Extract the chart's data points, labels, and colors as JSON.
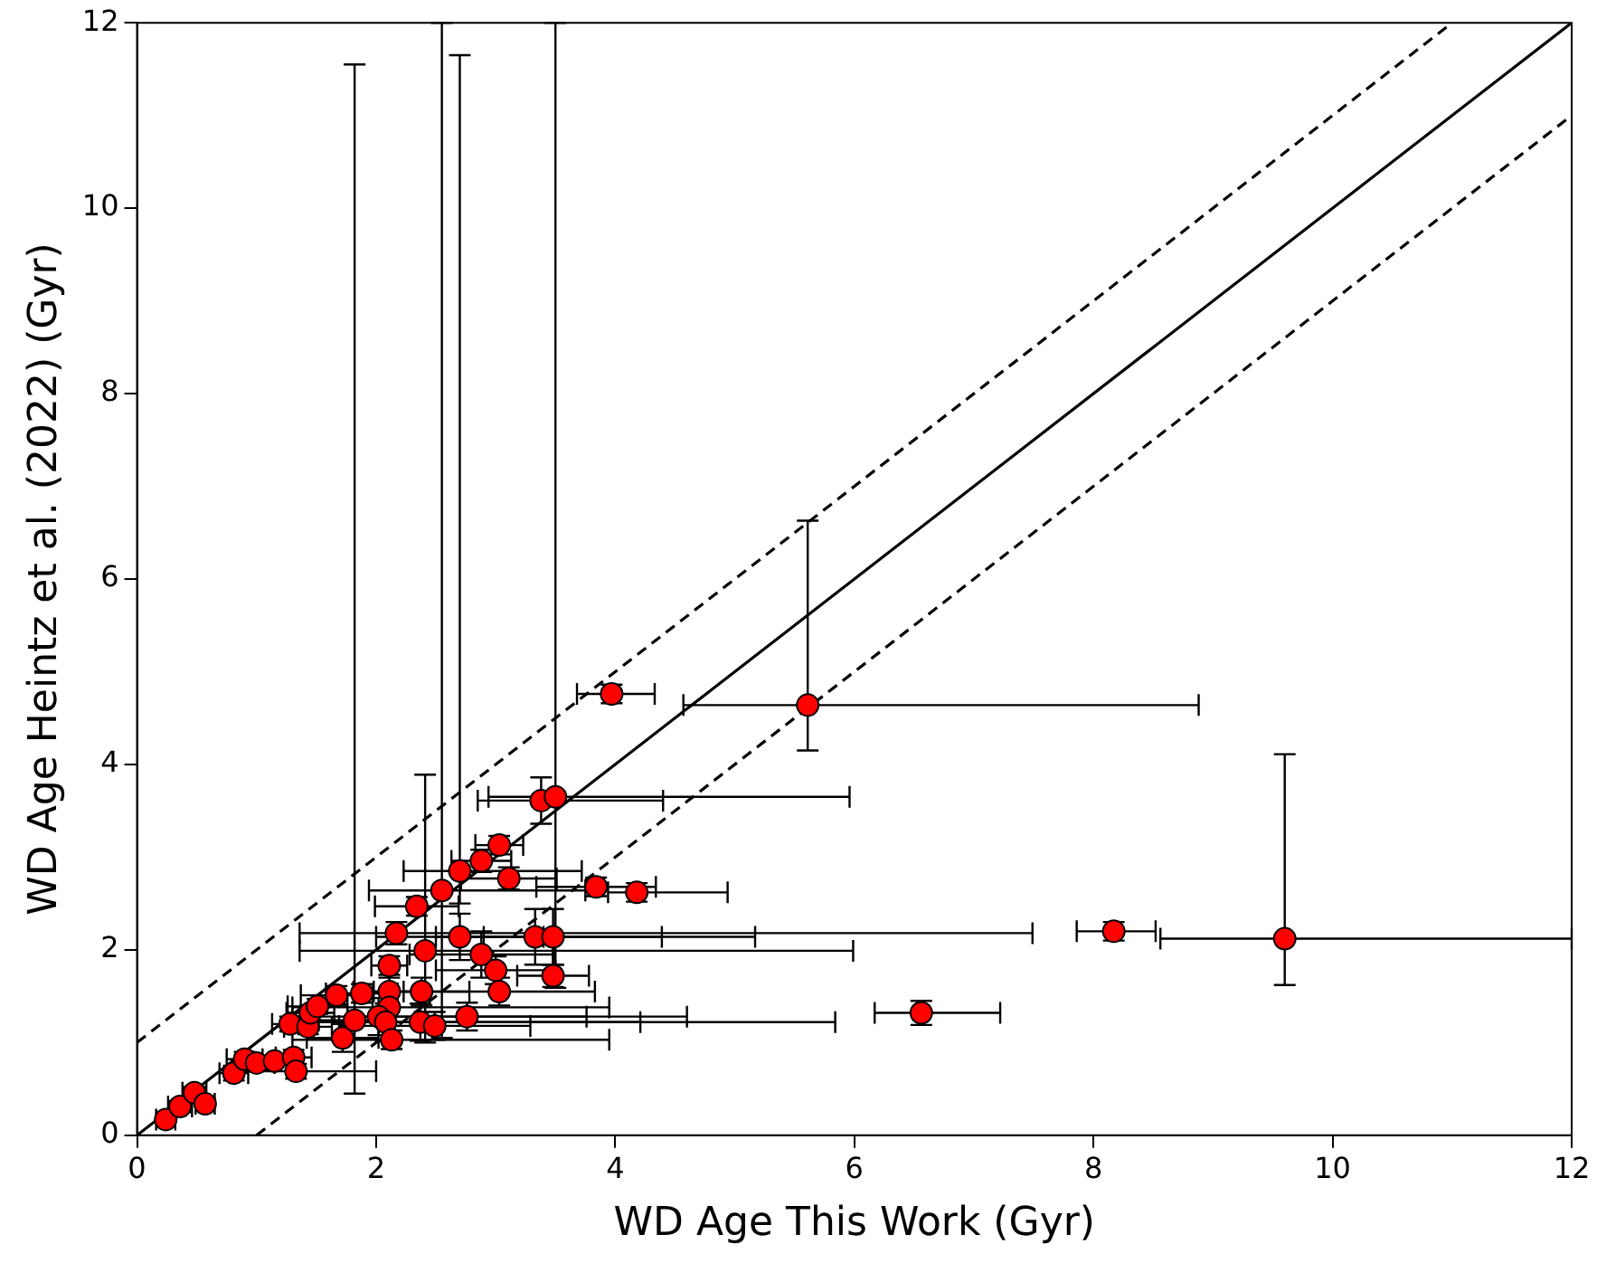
{
  "chart_data": {
    "type": "scatter",
    "xlabel": "WD Age This Work (Gyr)",
    "ylabel": "WD Age Heintz et al. (2022) (Gyr)",
    "xlim": [
      0,
      12
    ],
    "ylim": [
      0,
      12
    ],
    "xticks": [
      0,
      2,
      4,
      6,
      8,
      10,
      12
    ],
    "yticks": [
      0,
      2,
      4,
      6,
      8,
      10,
      12
    ],
    "grid": false,
    "legend": false,
    "marker": "circle",
    "series": [
      {
        "color": "#ff0000",
        "x": [
          0.24,
          0.36,
          0.48,
          0.57,
          0.81,
          0.9,
          1.0,
          1.15,
          1.31,
          1.33,
          1.28,
          1.43,
          1.45,
          1.51,
          1.67,
          1.88,
          1.72,
          1.82,
          2.11,
          2.11,
          2.11,
          2.02,
          2.08,
          2.13,
          2.38,
          2.37,
          2.49,
          2.41,
          2.17,
          2.34,
          2.55,
          2.7,
          2.88,
          3.03,
          3.11,
          2.7,
          2.76,
          2.88,
          3.0,
          3.03,
          3.33,
          3.48,
          3.48,
          3.38,
          3.5,
          3.84,
          4.18,
          3.97,
          5.61,
          8.17,
          9.6,
          6.56
        ],
        "values": [
          0.17,
          0.31,
          0.46,
          0.34,
          0.67,
          0.82,
          0.78,
          0.8,
          0.84,
          0.69,
          1.2,
          1.17,
          1.32,
          1.39,
          1.51,
          1.53,
          1.05,
          1.24,
          1.83,
          1.55,
          1.38,
          1.28,
          1.22,
          1.03,
          1.55,
          1.22,
          1.18,
          1.99,
          2.18,
          2.47,
          2.64,
          2.85,
          2.96,
          3.13,
          2.77,
          2.14,
          1.28,
          1.95,
          1.78,
          1.55,
          2.14,
          2.14,
          1.72,
          3.61,
          3.65,
          2.68,
          2.62,
          4.76,
          4.64,
          2.2,
          2.12,
          1.32
        ],
        "errors": [
          null,
          0.06,
          0.06,
          null,
          0.08,
          0.08,
          0.07,
          null,
          0.08,
          0.08,
          0.08,
          0.08,
          0.08,
          0.08,
          0.1,
          0.1,
          0.15,
          [
            0.45,
            11.55
          ],
          0.1,
          0.15,
          0.2,
          0.2,
          0.2,
          0.1,
          0.15,
          0.2,
          0.15,
          [
            1.0,
            3.89
          ],
          0.12,
          0.1,
          [
            1.05,
            12
          ],
          [
            2.5,
            11.65
          ],
          0.12,
          0.1,
          0.12,
          0.25,
          0.15,
          0.25,
          0.15,
          0.15,
          0.3,
          0.3,
          0.12,
          0.25,
          [
            1.59,
            12
          ],
          0.1,
          0.1,
          0.1,
          [
            4.15,
            6.63
          ],
          0.1,
          [
            1.62,
            4.11
          ],
          0.13
        ],
        "xerrors": [
          0.08,
          0.1,
          0.1,
          0.08,
          0.12,
          0.15,
          0.15,
          0.2,
          0.15,
          [
            0.8,
            2.0
          ],
          0.15,
          0.2,
          0.2,
          0.25,
          0.3,
          0.3,
          0.3,
          0.3,
          0.15,
          0.3,
          [
            1.3,
            3.95
          ],
          [
            1.3,
            4.6
          ],
          [
            1.3,
            5.84
          ],
          [
            1.3,
            3.95
          ],
          0.4,
          [
            1.3,
            4.21
          ],
          0.8,
          [
            1.36,
            5.99
          ],
          [
            1.36,
            7.49
          ],
          0.35,
          [
            1.94,
            3.75
          ],
          [
            2.23,
            3.72
          ],
          0.25,
          0.2,
          0.4,
          0.7,
          1.0,
          0.6,
          0.5,
          0.8,
          [
            2.5,
            4.39
          ],
          [
            2.9,
            5.17
          ],
          0.3,
          [
            2.85,
            4.4
          ],
          [
            2.94,
            5.96
          ],
          0.5,
          [
            3.94,
            4.94
          ],
          [
            3.68,
            4.33
          ],
          [
            4.57,
            8.88
          ],
          [
            7.86,
            8.52
          ],
          [
            8.56,
            12
          ],
          [
            6.17,
            7.22
          ]
        ]
      },
      {
        "type": "line",
        "color": "#000000",
        "line_style": "dashed",
        "marker": "none",
        "x": [
          0,
          11
        ],
        "values": [
          1,
          12
        ]
      },
      {
        "type": "line",
        "color": "#000000",
        "line_style": "solid",
        "marker": "none",
        "x": [
          0,
          12
        ],
        "values": [
          0,
          12
        ]
      },
      {
        "type": "line",
        "color": "#000000",
        "line_style": "dashed",
        "marker": "none",
        "x": [
          1,
          12
        ],
        "values": [
          0,
          11
        ]
      }
    ]
  }
}
